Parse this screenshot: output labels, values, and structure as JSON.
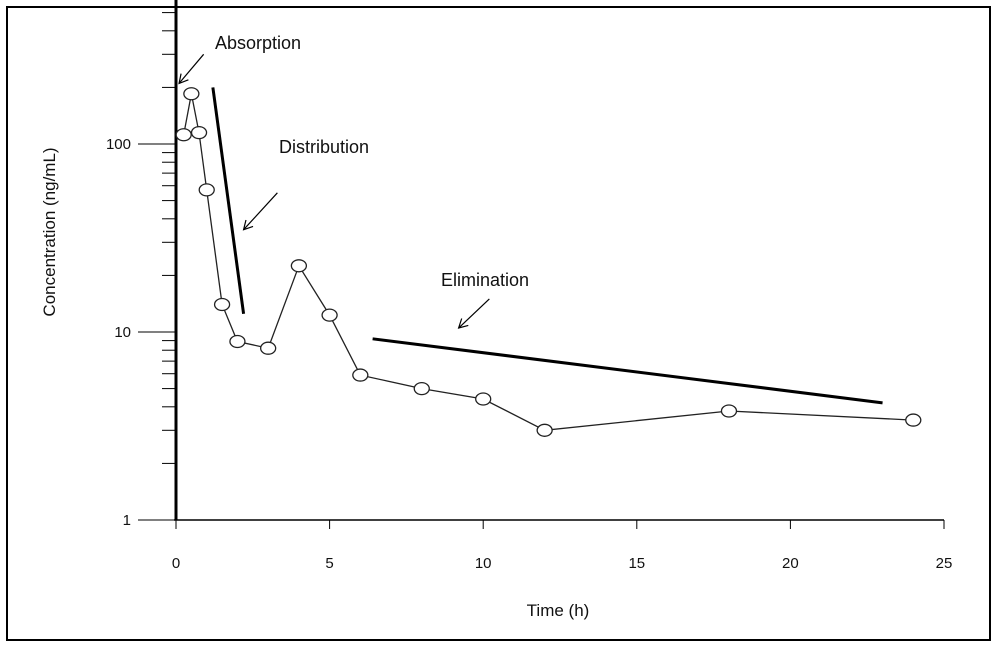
{
  "chart_data": {
    "type": "line",
    "xlabel": "Time (h)",
    "ylabel": "Concentration (ng/mL)",
    "xlim": [
      0,
      25
    ],
    "ylim": [
      1,
      600
    ],
    "yscale": "log",
    "grid": false,
    "legend": "none",
    "x_ticks": [
      0,
      5,
      10,
      15,
      20,
      25
    ],
    "x_tick_labels": [
      "0",
      "5",
      "10",
      "15",
      "20",
      "25"
    ],
    "y_tick_labels": [
      {
        "value": 1,
        "label": "1"
      },
      {
        "value": 10,
        "label": "10"
      },
      {
        "value": 100,
        "label": "100"
      }
    ],
    "series": [
      {
        "marker": "open-circle",
        "color": "#222222",
        "x": [
          0.25,
          0.5,
          0.75,
          1,
          1.5,
          2,
          3,
          4,
          5,
          6,
          8,
          10,
          12,
          18,
          24
        ],
        "y": [
          112,
          185,
          115,
          57,
          14,
          8.9,
          8.2,
          22.5,
          12.3,
          5.9,
          5.0,
          4.4,
          3.0,
          3.8,
          3.4
        ]
      }
    ],
    "trend_lines": [
      {
        "name": "distribution-trend",
        "x": [
          1.2,
          2.2
        ],
        "y": [
          200,
          12.5
        ]
      },
      {
        "name": "elimination-trend",
        "x": [
          6.4,
          23
        ],
        "y": [
          9.2,
          4.2
        ]
      }
    ],
    "annotations": [
      {
        "text": "Absorption",
        "arrow_from": [
          0.9,
          300
        ],
        "arrow_to": [
          0.1,
          210
        ]
      },
      {
        "text": "Distribution",
        "arrow_from": [
          3.3,
          55
        ],
        "arrow_to": [
          2.2,
          35
        ]
      },
      {
        "text": "Elimination",
        "arrow_from": [
          10.2,
          15
        ],
        "arrow_to": [
          9.2,
          10.5
        ]
      }
    ]
  }
}
